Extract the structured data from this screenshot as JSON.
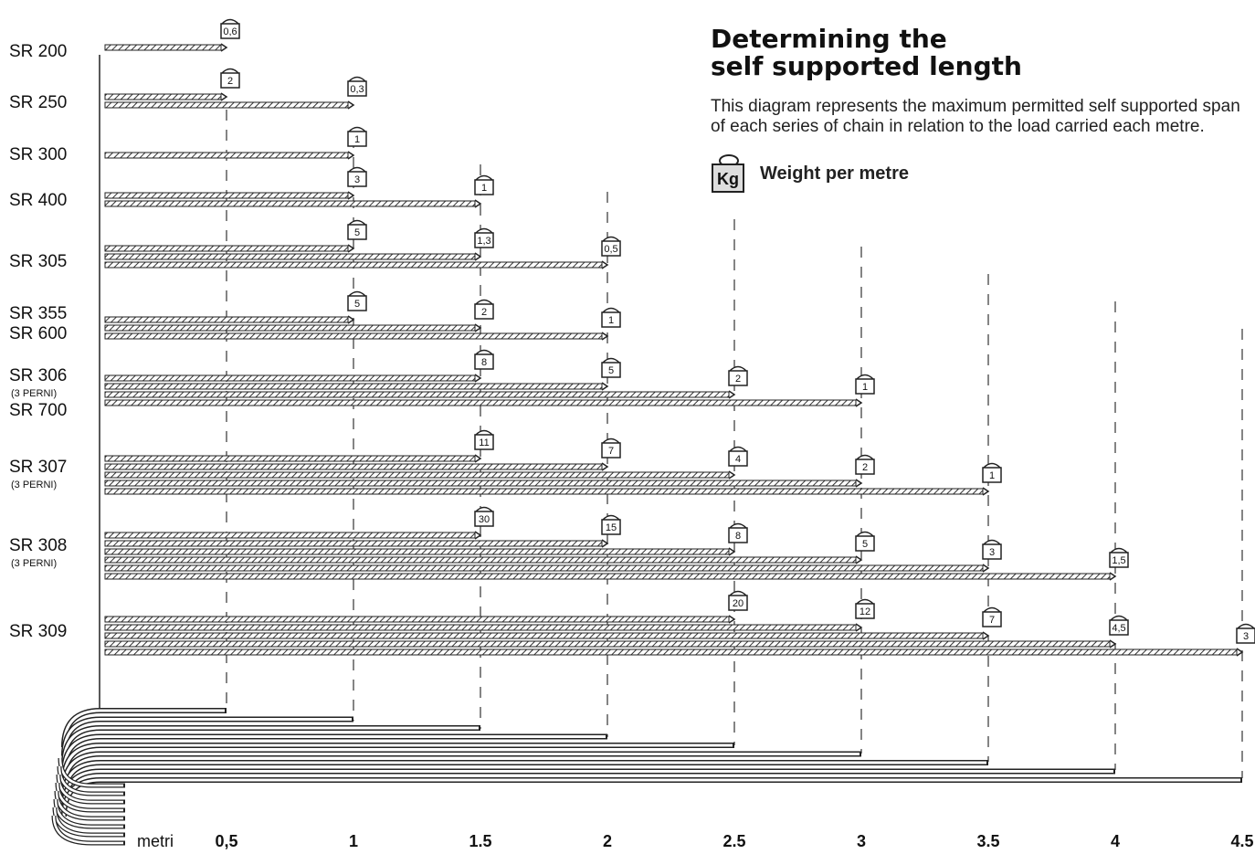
{
  "header": {
    "title_lines": [
      "Determining the",
      "self supported length"
    ],
    "description": "This diagram represents the maximum permitted self supported span of each series of chain in relation to the load carried each metre.",
    "legend": {
      "icon_text": "Kg",
      "label": "Weight per metre"
    }
  },
  "axis": {
    "label": "metri",
    "ticks": [
      {
        "value": 0.5,
        "label": "0,5"
      },
      1,
      1.5,
      2,
      2.5,
      3,
      3.5,
      4,
      4.5
    ]
  },
  "groups": [
    {
      "labels": [
        "SR 200"
      ],
      "arrows": [
        {
          "length": 0.5,
          "weight": "0,6"
        }
      ]
    },
    {
      "labels": [
        "SR 250"
      ],
      "arrows": [
        {
          "length": 0.5,
          "weight": "2"
        },
        {
          "length": 1,
          "weight": "0,3"
        }
      ]
    },
    {
      "labels": [
        "SR 300"
      ],
      "arrows": [
        {
          "length": 1,
          "weight": "1"
        }
      ]
    },
    {
      "labels": [
        "SR 400"
      ],
      "arrows": [
        {
          "length": 1,
          "weight": "3"
        },
        {
          "length": 1.5,
          "weight": "1"
        }
      ]
    },
    {
      "labels": [
        "SR 305"
      ],
      "arrows": [
        {
          "length": 1,
          "weight": "5"
        },
        {
          "length": 1.5,
          "weight": "1,3"
        },
        {
          "length": 2,
          "weight": "0,5"
        }
      ]
    },
    {
      "labels": [
        "SR 355",
        "SR 600"
      ],
      "arrows": [
        {
          "length": 1,
          "weight": "5"
        },
        {
          "length": 1.5,
          "weight": "2"
        },
        {
          "length": 2,
          "weight": "1"
        }
      ]
    },
    {
      "labels": [
        "SR 306",
        "(3 PERNI)",
        "SR 700"
      ],
      "arrows": [
        {
          "length": 1.5,
          "weight": "8"
        },
        {
          "length": 2,
          "weight": "5"
        },
        {
          "length": 2.5,
          "weight": "2"
        },
        {
          "length": 3,
          "weight": "1"
        }
      ]
    },
    {
      "labels": [
        "SR 307",
        "(3 PERNI)"
      ],
      "arrows": [
        {
          "length": 1.5,
          "weight": "11"
        },
        {
          "length": 2,
          "weight": "7"
        },
        {
          "length": 2.5,
          "weight": "4"
        },
        {
          "length": 3,
          "weight": "2"
        },
        {
          "length": 3.5,
          "weight": "1"
        }
      ]
    },
    {
      "labels": [
        "SR 308",
        "(3 PERNI)"
      ],
      "arrows": [
        {
          "length": 1.5,
          "weight": "30"
        },
        {
          "length": 2,
          "weight": "15"
        },
        {
          "length": 2.5,
          "weight": "8"
        },
        {
          "length": 3,
          "weight": "5"
        },
        {
          "length": 3.5,
          "weight": "3"
        },
        {
          "length": 4,
          "weight": "1,5"
        }
      ]
    },
    {
      "labels": [
        "SR 309"
      ],
      "arrows": [
        {
          "length": 2.5,
          "weight": "20"
        },
        {
          "length": 3,
          "weight": "12"
        },
        {
          "length": 3.5,
          "weight": "7"
        },
        {
          "length": 4,
          "weight": "4,5"
        },
        {
          "length": 4.5,
          "weight": "3"
        }
      ]
    }
  ]
}
